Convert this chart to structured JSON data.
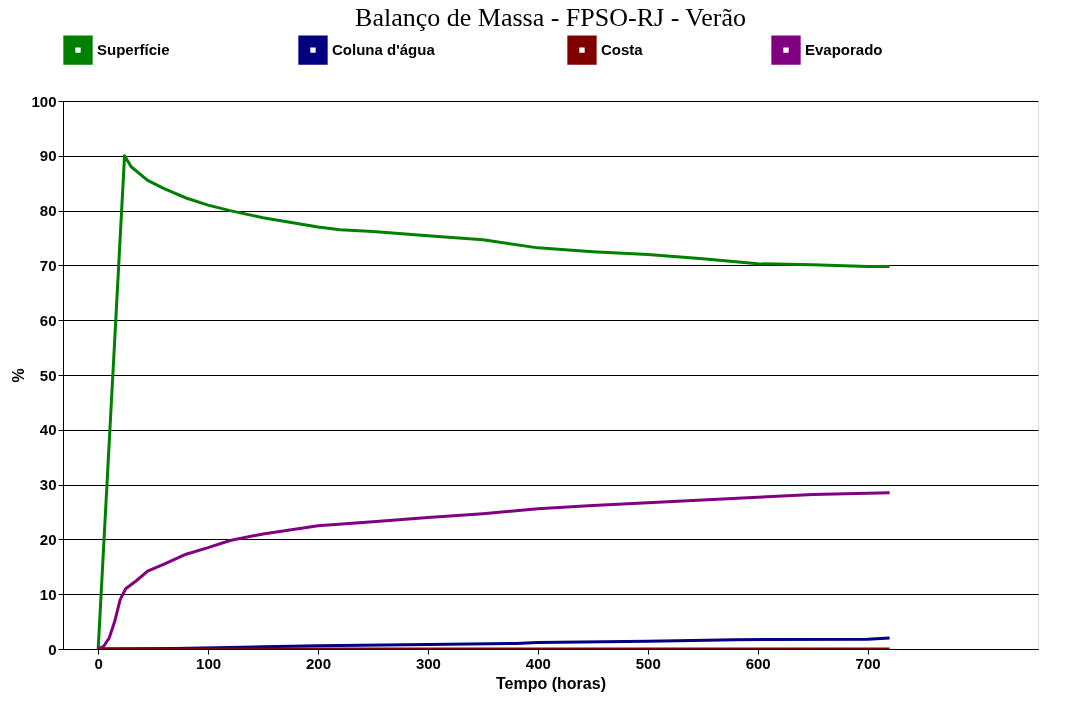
{
  "chart_data": {
    "type": "line",
    "title": "Balanço de Massa - FPSO-RJ - Verão",
    "xlabel": "Tempo (horas)",
    "ylabel": "%",
    "xlim": [
      -32,
      855
    ],
    "xticks": [
      0,
      100,
      200,
      300,
      400,
      500,
      600,
      700
    ],
    "ylim": [
      0,
      100
    ],
    "yticks": [
      0,
      10,
      20,
      30,
      40,
      50,
      60,
      70,
      80,
      90,
      100
    ],
    "grid": "y",
    "legend": "top",
    "marker": "none",
    "line_style": "solid",
    "series": [
      {
        "name": "Superfície",
        "color": "#008000",
        "x": [
          0,
          24,
          30,
          45,
          60,
          80,
          100,
          120,
          150,
          200,
          220,
          250,
          300,
          350,
          400,
          450,
          500,
          550,
          600,
          650,
          700,
          720
        ],
        "values": [
          0,
          90,
          88,
          85.5,
          84,
          82.3,
          81,
          80,
          78.7,
          77,
          76.5,
          76.2,
          75.4,
          74.7,
          73.2,
          72.5,
          72,
          71.2,
          70.3,
          70.1,
          69.8,
          69.8
        ]
      },
      {
        "name": "Coluna  d'água",
        "color": "#000080",
        "x": [
          0,
          70,
          150,
          200,
          300,
          380,
          400,
          500,
          580,
          700,
          720
        ],
        "values": [
          0,
          0.1,
          0.4,
          0.6,
          0.8,
          1.0,
          1.2,
          1.4,
          1.7,
          1.8,
          2.0
        ]
      },
      {
        "name": "Costa",
        "color": "#800000",
        "x": [
          0,
          720
        ],
        "values": [
          0,
          0
        ]
      },
      {
        "name": "Evaporado",
        "color": "#800080",
        "x": [
          0,
          5,
          10,
          15,
          20,
          25,
          35,
          45,
          60,
          80,
          100,
          120,
          150,
          200,
          250,
          300,
          350,
          400,
          450,
          500,
          550,
          600,
          650,
          720
        ],
        "values": [
          0,
          0.5,
          2,
          5,
          9,
          11,
          12.5,
          14.2,
          15.5,
          17.3,
          18.5,
          19.8,
          21,
          22.5,
          23.2,
          24,
          24.7,
          25.6,
          26.2,
          26.7,
          27.2,
          27.7,
          28.2,
          28.5
        ]
      }
    ]
  }
}
